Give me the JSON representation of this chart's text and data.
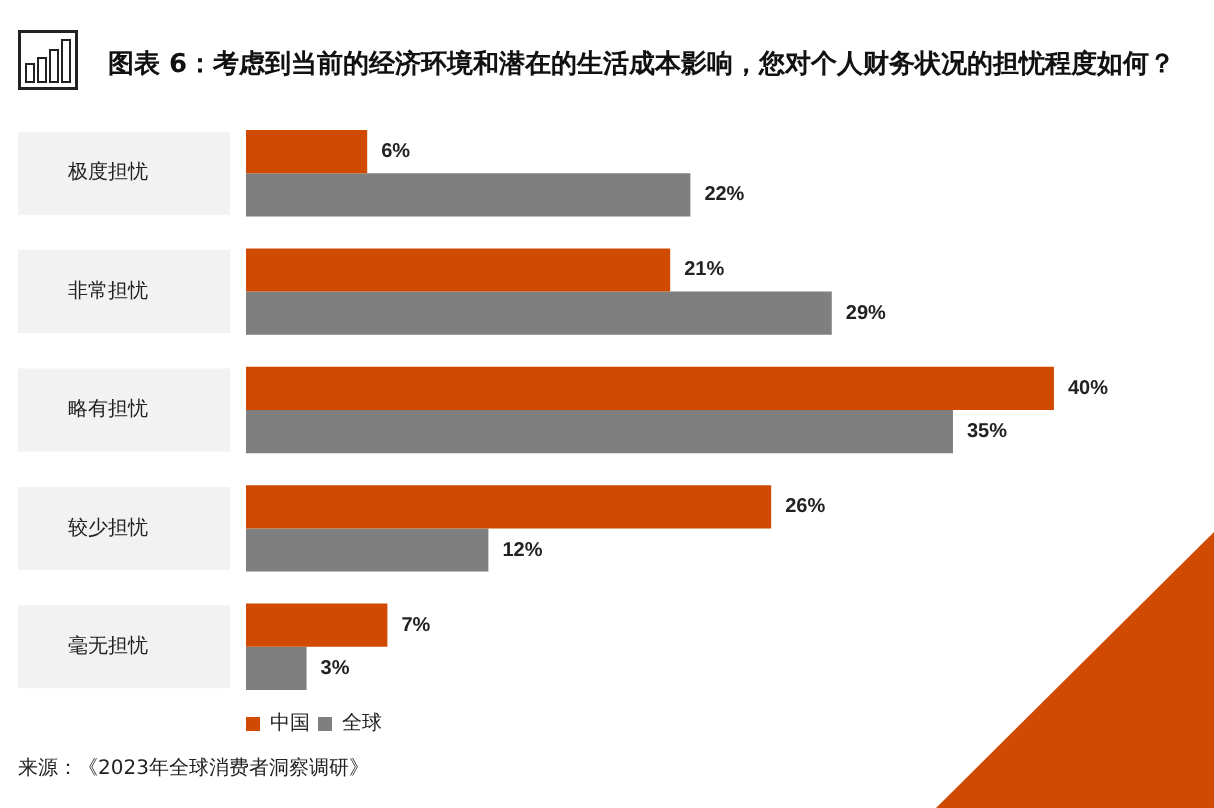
{
  "chart_data": {
    "type": "bar",
    "orientation": "horizontal",
    "title": "图表 6：考虑到当前的经济环境和潜在的生活成本影响，您对个人财务状况的担忧程度如何？",
    "categories": [
      "极度担忧",
      "非常担忧",
      "略有担忧",
      "较少担忧",
      "毫无担忧"
    ],
    "series": [
      {
        "name": "中国",
        "color": "#d04a02",
        "values": [
          6,
          21,
          40,
          26,
          7
        ],
        "value_labels": [
          "6%",
          "21%",
          "40%",
          "26%",
          "7%"
        ]
      },
      {
        "name": "全球",
        "color": "#7f7f7f",
        "values": [
          22,
          29,
          35,
          12,
          3
        ],
        "value_labels": [
          "22%",
          "29%",
          "35%",
          "12%",
          "3%"
        ]
      }
    ],
    "legend": "bottom left",
    "annotations": [
      "来源：《2023年全球消费者洞察调研》"
    ]
  }
}
